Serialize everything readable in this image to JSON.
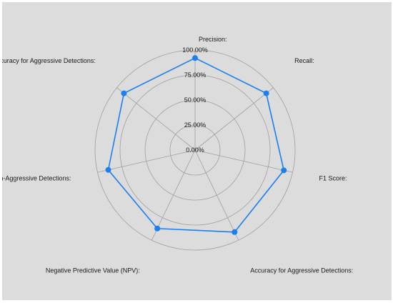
{
  "chart_data": {
    "type": "radar",
    "categories": [
      "Precision:",
      "Recall:",
      "F1 Score:",
      "Accuracy for Aggressive Detections:",
      "Negative Predictive Value (NPV):",
      "Accuracy for Non-Aggressive Detections:",
      "Accuracy for Aggressive Detections:"
    ],
    "series": [
      {
        "values": [
          92,
          91,
          91,
          91,
          87,
          89,
          91
        ]
      }
    ],
    "radial_ticks": [
      "0.00%",
      "25.00%",
      "50.00%",
      "75.00%",
      "100.00%"
    ],
    "rlim": [
      0,
      100
    ],
    "grid": true,
    "colors": {
      "series": "#1a7ff0",
      "grid": "#9e9e9e",
      "background": "#dcdcdc"
    }
  }
}
